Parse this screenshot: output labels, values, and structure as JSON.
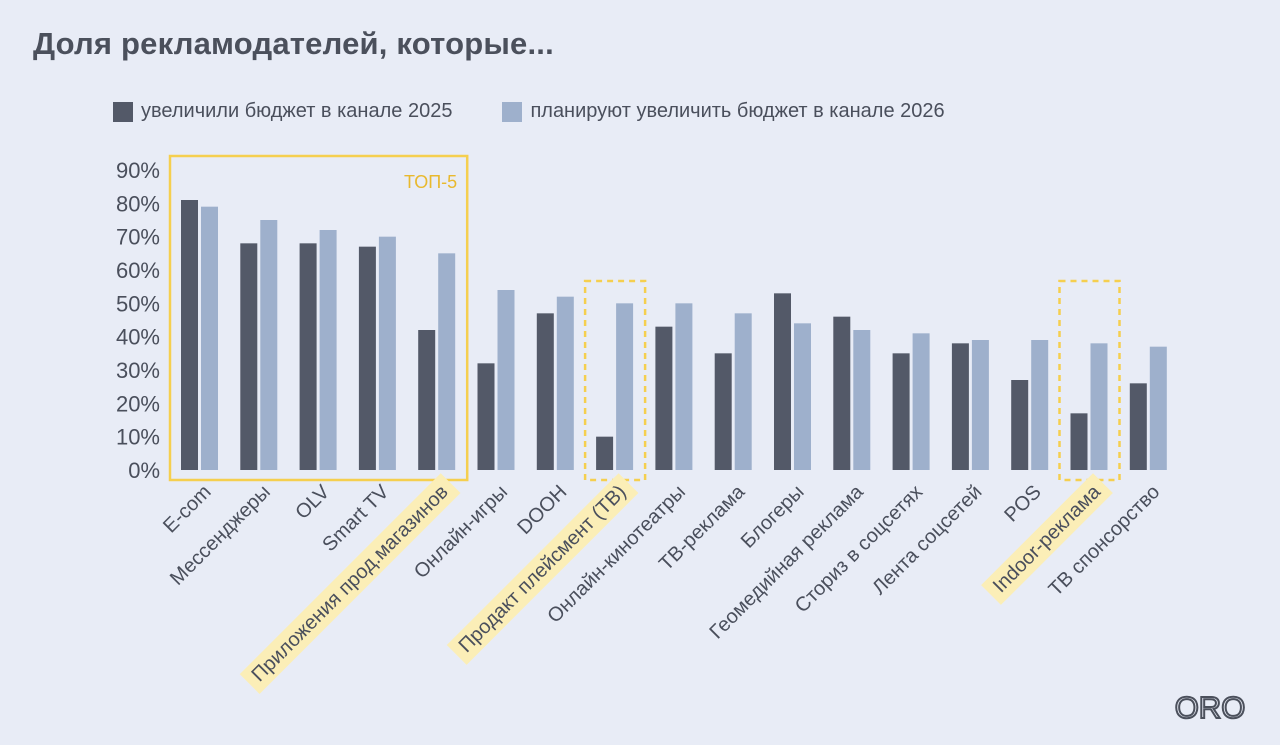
{
  "title": "Доля рекламодателей, которые...",
  "legend": [
    {
      "label": "увеличили бюджет в канале 2025",
      "color": "#535968"
    },
    {
      "label": "планируют увеличить бюджет в канале 2026",
      "color": "#9eb0cc"
    }
  ],
  "top5_label": "ТОП-5",
  "logo_text": "ORO",
  "colors": {
    "highlight": "#f5cf4f",
    "highlight_fill": "#fbeeb7",
    "background": "#e8ecf6"
  },
  "chart_data": {
    "type": "bar",
    "categories": [
      "E-com",
      "Мессенджеры",
      "OLV",
      "Smart TV",
      "Приложения прод.магазинов",
      "Онлайн-игры",
      "DOOH",
      "Продакт плейсмент (ТВ)",
      "Онлайн-кинотеатры",
      "ТВ-реклама",
      "Блогеры",
      "Геомедийная реклама",
      "Сториз в соцсетях",
      "Лента соцсетей",
      "POS",
      "Indoor-реклама",
      "ТВ спонсорство"
    ],
    "series": [
      {
        "name": "увеличили бюджет в канале 2025",
        "values": [
          81,
          68,
          68,
          67,
          42,
          32,
          47,
          10,
          43,
          35,
          53,
          46,
          35,
          38,
          27,
          17,
          26
        ]
      },
      {
        "name": "планируют увеличить бюджет в канале 2026",
        "values": [
          79,
          75,
          72,
          70,
          65,
          54,
          52,
          50,
          50,
          47,
          44,
          42,
          41,
          39,
          39,
          38,
          37
        ]
      }
    ],
    "yticks": [
      "0%",
      "10%",
      "20%",
      "30%",
      "40%",
      "50%",
      "60%",
      "70%",
      "80%",
      "90%"
    ],
    "ylim": [
      0,
      90
    ],
    "grid": false,
    "legend_position": "top",
    "highlighted_categories": [
      "Приложения прод.магазинов",
      "Продакт плейсмент (ТВ)",
      "Indoor-реклама"
    ],
    "dashed_boxes": [
      "Продакт плейсмент (ТВ)",
      "Indoor-реклама"
    ],
    "top5_box": [
      "E-com",
      "Мессенджеры",
      "OLV",
      "Smart TV",
      "Приложения прод.магазинов"
    ]
  }
}
